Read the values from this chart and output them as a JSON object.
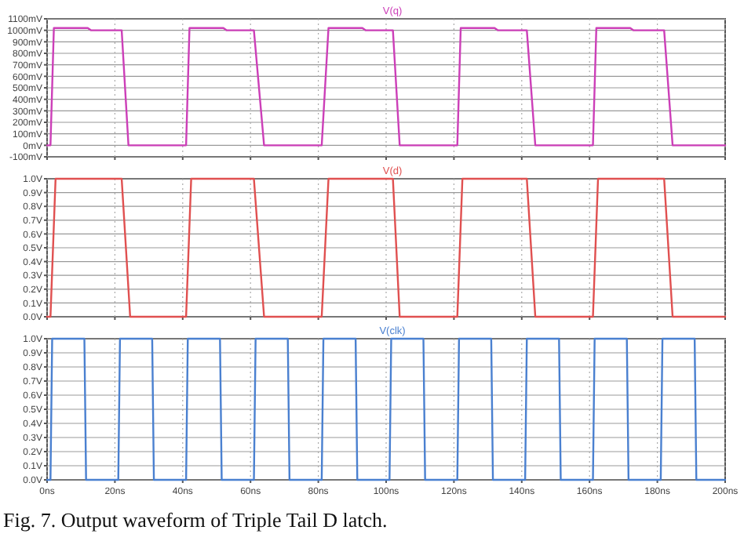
{
  "chart_data": [
    {
      "type": "line",
      "title": "V(q)",
      "xlim": [
        0,
        200
      ],
      "xticks": [
        0,
        20,
        40,
        60,
        80,
        100,
        120,
        140,
        160,
        180,
        200
      ],
      "ylim": [
        -100,
        1100
      ],
      "yticks": [
        {
          "value": -100,
          "label": "-100mV"
        },
        {
          "value": 0,
          "label": "0mV"
        },
        {
          "value": 100,
          "label": "100mV"
        },
        {
          "value": 200,
          "label": "200mV"
        },
        {
          "value": 300,
          "label": "300mV"
        },
        {
          "value": 400,
          "label": "400mV"
        },
        {
          "value": 500,
          "label": "500mV"
        },
        {
          "value": 600,
          "label": "600mV"
        },
        {
          "value": 700,
          "label": "700mV"
        },
        {
          "value": 800,
          "label": "800mV"
        },
        {
          "value": 900,
          "label": "900mV"
        },
        {
          "value": 1000,
          "label": "1000mV"
        },
        {
          "value": 1100,
          "label": "1100mV"
        }
      ],
      "grid": true,
      "tick_labels": "y",
      "series": [
        {
          "color": "#cc3fb8",
          "x": [
            0,
            1,
            2,
            12,
            13,
            22,
            24,
            41,
            42,
            52,
            53,
            61,
            64,
            81,
            83,
            93,
            94,
            102,
            104,
            121,
            122,
            132,
            133,
            141.5,
            144,
            161,
            162,
            172,
            173,
            182,
            184.5,
            200
          ],
          "values": [
            0,
            0,
            1020,
            1020,
            1000,
            1000,
            0,
            0,
            1020,
            1020,
            1000,
            1000,
            0,
            0,
            1020,
            1020,
            1000,
            1000,
            0,
            0,
            1020,
            1020,
            1000,
            1000,
            0,
            0,
            1020,
            1020,
            1000,
            1000,
            0,
            0
          ]
        }
      ]
    },
    {
      "type": "line",
      "title": "V(d)",
      "xlim": [
        0,
        200
      ],
      "xticks": [
        0,
        20,
        40,
        60,
        80,
        100,
        120,
        140,
        160,
        180,
        200
      ],
      "ylim": [
        0,
        1
      ],
      "yticks": [
        {
          "value": 0,
          "label": "0.0V"
        },
        {
          "value": 0.1,
          "label": "0.1V"
        },
        {
          "value": 0.2,
          "label": "0.2V"
        },
        {
          "value": 0.3,
          "label": "0.3V"
        },
        {
          "value": 0.4,
          "label": "0.4V"
        },
        {
          "value": 0.5,
          "label": "0.5V"
        },
        {
          "value": 0.6,
          "label": "0.6V"
        },
        {
          "value": 0.7,
          "label": "0.7V"
        },
        {
          "value": 0.8,
          "label": "0.8V"
        },
        {
          "value": 0.9,
          "label": "0.9V"
        },
        {
          "value": 1,
          "label": "1.0V"
        }
      ],
      "grid": true,
      "tick_labels": "y",
      "series": [
        {
          "color": "#e05050",
          "x": [
            0,
            1,
            2.5,
            22,
            24.5,
            41,
            42.5,
            61,
            64,
            81,
            83,
            102,
            104,
            121,
            122.5,
            141.5,
            144,
            161,
            162.5,
            182,
            184.5,
            200
          ],
          "values": [
            0,
            0,
            1,
            1,
            0,
            0,
            1,
            1,
            0,
            0,
            1,
            1,
            0,
            0,
            1,
            1,
            0,
            0,
            1,
            1,
            0,
            0
          ]
        }
      ]
    },
    {
      "type": "line",
      "title": "V(clk)",
      "xlim": [
        0,
        200
      ],
      "xticks": [
        {
          "value": 0,
          "label": "0ns"
        },
        {
          "value": 20,
          "label": "20ns"
        },
        {
          "value": 40,
          "label": "40ns"
        },
        {
          "value": 60,
          "label": "60ns"
        },
        {
          "value": 80,
          "label": "80ns"
        },
        {
          "value": 100,
          "label": "100ns"
        },
        {
          "value": 120,
          "label": "120ns"
        },
        {
          "value": 140,
          "label": "140ns"
        },
        {
          "value": 160,
          "label": "160ns"
        },
        {
          "value": 180,
          "label": "180ns"
        },
        {
          "value": 200,
          "label": "200ns"
        }
      ],
      "ylim": [
        0,
        1
      ],
      "yticks": [
        {
          "value": 0,
          "label": "0.0V"
        },
        {
          "value": 0.1,
          "label": "0.1V"
        },
        {
          "value": 0.2,
          "label": "0.2V"
        },
        {
          "value": 0.3,
          "label": "0.3V"
        },
        {
          "value": 0.4,
          "label": "0.4V"
        },
        {
          "value": 0.5,
          "label": "0.5V"
        },
        {
          "value": 0.6,
          "label": "0.6V"
        },
        {
          "value": 0.7,
          "label": "0.7V"
        },
        {
          "value": 0.8,
          "label": "0.8V"
        },
        {
          "value": 0.9,
          "label": "0.9V"
        },
        {
          "value": 1,
          "label": "1.0V"
        }
      ],
      "grid": true,
      "annotations": [
        "Fig. 7. Output waveform of Triple Tail D latch."
      ],
      "series": [
        {
          "color": "#4a80d0",
          "x": [
            0,
            1,
            1.5,
            11,
            11.5,
            21,
            21.5,
            31,
            31.5,
            41,
            41.5,
            51,
            51.5,
            61,
            61.5,
            71,
            71.5,
            81,
            81.5,
            91,
            91.5,
            101,
            101.5,
            111,
            111.5,
            121,
            121.5,
            131,
            131.5,
            141,
            141.5,
            151,
            151.5,
            161,
            161.5,
            171,
            171.5,
            181,
            181.5,
            191,
            191.5,
            200
          ],
          "values": [
            0,
            0,
            1,
            1,
            0,
            0,
            1,
            1,
            0,
            0,
            1,
            1,
            0,
            0,
            1,
            1,
            0,
            0,
            1,
            1,
            0,
            0,
            1,
            1,
            0,
            0,
            1,
            1,
            0,
            0,
            1,
            1,
            0,
            0,
            1,
            1,
            0,
            0,
            1,
            1,
            0,
            0
          ]
        }
      ]
    }
  ]
}
